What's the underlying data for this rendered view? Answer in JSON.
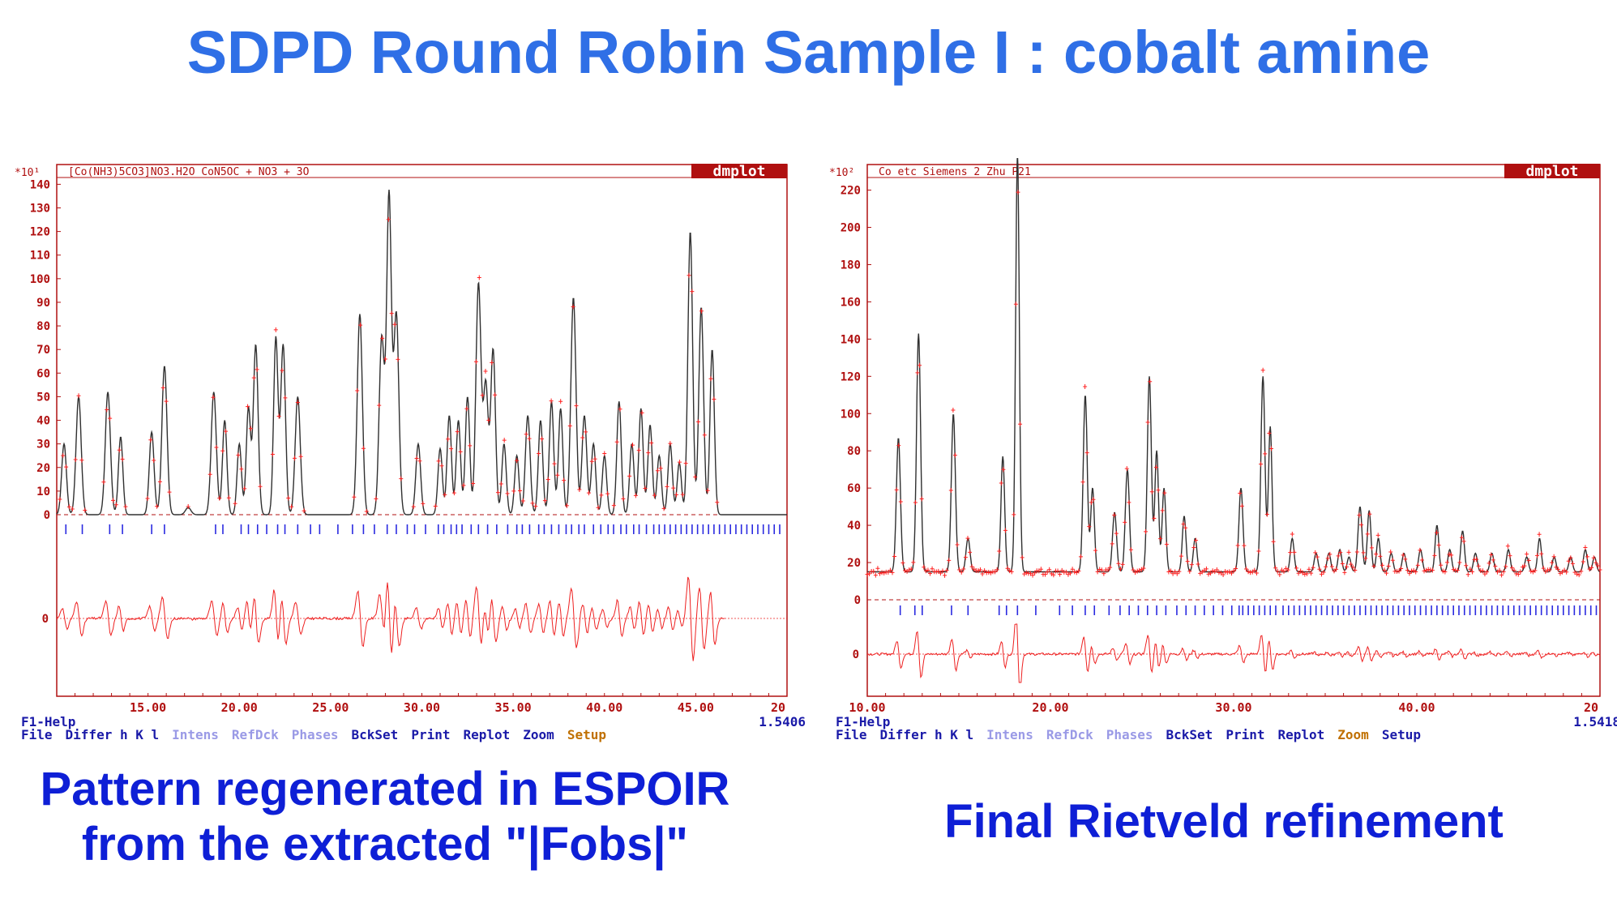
{
  "title": "SDPD Round Robin Sample I : cobalt amine",
  "captions": {
    "left_line1": "Pattern regenerated in ESPOIR",
    "left_line2": "from the extracted \"|Fobs|\"",
    "right": "Final Rietveld refinement"
  },
  "colors": {
    "title": "#2f6fe6",
    "caption": "#0e1fd6",
    "frame": "#b01010",
    "observed": "#ff2020",
    "calculated": "#303030",
    "ticks": "#2a2ae0",
    "difference": "#ee2020",
    "menu_active": "#1a1aa8",
    "menu_dim": "#9a9ae6",
    "menu_orange": "#c07000"
  },
  "chart_data": [
    {
      "type": "line",
      "badge": "dmplot",
      "scale_label": "*10¹",
      "header": "[Co(NH3)5CO3]NO3.H2O  CoN5OC + NO3 + 3O",
      "y_ticks": [
        0,
        10,
        20,
        30,
        40,
        50,
        60,
        70,
        80,
        90,
        100,
        110,
        120,
        130,
        140
      ],
      "ylim": [
        0,
        147
      ],
      "x_ticks": [
        "15.00",
        "20.00",
        "25.00",
        "30.00",
        "35.00",
        "40.00",
        "45.00",
        "20"
      ],
      "xlim": [
        10.0,
        50.0
      ],
      "diff_zero_label": "0",
      "background": 0,
      "end_2theta": 46.6,
      "peaks": [
        [
          10.4,
          30,
          0.13
        ],
        [
          11.2,
          50,
          0.14
        ],
        [
          12.8,
          52,
          0.14
        ],
        [
          13.5,
          33,
          0.12
        ],
        [
          15.2,
          35,
          0.13
        ],
        [
          15.9,
          63,
          0.14
        ],
        [
          17.2,
          3,
          0.15
        ],
        [
          18.6,
          52,
          0.14
        ],
        [
          19.2,
          40,
          0.12
        ],
        [
          20.0,
          30,
          0.12
        ],
        [
          20.5,
          45,
          0.12
        ],
        [
          20.9,
          72,
          0.13
        ],
        [
          22.0,
          75,
          0.12
        ],
        [
          22.4,
          72,
          0.13
        ],
        [
          23.2,
          50,
          0.14
        ],
        [
          26.6,
          85,
          0.14
        ],
        [
          27.8,
          75,
          0.14
        ],
        [
          28.2,
          135,
          0.13
        ],
        [
          28.6,
          85,
          0.14
        ],
        [
          29.8,
          30,
          0.13
        ],
        [
          31.0,
          28,
          0.12
        ],
        [
          31.5,
          42,
          0.12
        ],
        [
          32.0,
          40,
          0.12
        ],
        [
          32.5,
          50,
          0.12
        ],
        [
          33.1,
          98,
          0.14
        ],
        [
          33.5,
          55,
          0.13
        ],
        [
          33.9,
          70,
          0.13
        ],
        [
          34.5,
          30,
          0.12
        ],
        [
          35.2,
          25,
          0.12
        ],
        [
          35.8,
          42,
          0.13
        ],
        [
          36.5,
          40,
          0.12
        ],
        [
          37.1,
          48,
          0.12
        ],
        [
          37.6,
          45,
          0.12
        ],
        [
          38.3,
          92,
          0.14
        ],
        [
          38.9,
          42,
          0.13
        ],
        [
          39.4,
          30,
          0.12
        ],
        [
          40.0,
          25,
          0.12
        ],
        [
          40.8,
          48,
          0.12
        ],
        [
          41.5,
          30,
          0.12
        ],
        [
          42.0,
          45,
          0.12
        ],
        [
          42.5,
          38,
          0.12
        ],
        [
          43.0,
          25,
          0.12
        ],
        [
          43.6,
          30,
          0.12
        ],
        [
          44.1,
          22,
          0.12
        ],
        [
          44.7,
          120,
          0.13
        ],
        [
          45.3,
          88,
          0.13
        ],
        [
          45.9,
          70,
          0.12
        ]
      ],
      "refl_ticks": [
        10.5,
        11.4,
        12.9,
        13.6,
        15.2,
        15.9,
        18.7,
        19.1,
        20.1,
        20.5,
        21.0,
        21.5,
        22.1,
        22.5,
        23.2,
        23.9,
        24.4,
        25.4,
        26.2,
        26.8,
        27.4,
        28.1,
        28.6,
        29.2,
        29.6,
        30.2,
        30.9,
        31.2,
        31.6,
        31.9,
        32.2,
        32.7,
        33.1,
        33.6,
        34.1,
        34.7,
        35.2,
        35.5,
        35.9,
        36.4,
        36.7,
        37.1,
        37.5,
        37.9,
        38.2,
        38.6,
        38.9,
        39.4,
        39.8,
        40.2,
        40.5,
        40.9,
        41.2,
        41.6,
        41.9,
        42.3,
        42.7,
        43.0,
        43.3,
        43.6,
        43.9,
        44.2,
        44.5,
        44.8,
        45.1,
        45.4,
        45.7,
        46.0,
        46.3,
        46.6,
        46.9,
        47.2,
        47.5,
        47.8,
        48.1,
        48.4,
        48.7,
        49.0,
        49.3,
        49.6
      ],
      "diff_scale": 0.55,
      "help": "F1-Help",
      "wavelength": "1.5406",
      "menu": [
        {
          "label": "File",
          "style": "active"
        },
        {
          "label": "Differ h K l",
          "style": "active"
        },
        {
          "label": "Intens",
          "style": "dim"
        },
        {
          "label": "RefDck",
          "style": "dim"
        },
        {
          "label": "Phases",
          "style": "dim"
        },
        {
          "label": "BckSet",
          "style": "active"
        },
        {
          "label": "Print",
          "style": "active"
        },
        {
          "label": "Replot",
          "style": "active"
        },
        {
          "label": "Zoom",
          "style": "active"
        },
        {
          "label": "Setup",
          "style": "orange"
        }
      ]
    },
    {
      "type": "line",
      "badge": "dmplot",
      "scale_label": "*10²",
      "header": "Co etc  Siemens 2 Zhu   P21",
      "y_ticks": [
        0,
        20,
        40,
        60,
        80,
        100,
        120,
        140,
        160,
        180,
        200,
        220
      ],
      "ylim": [
        0,
        232
      ],
      "x_ticks": [
        "10.00",
        "20.00",
        "30.00",
        "40.00",
        "20"
      ],
      "xlim": [
        10.0,
        50.0
      ],
      "diff_zero_label": "0",
      "background": 15,
      "end_2theta": 50.0,
      "peaks": [
        [
          11.7,
          72,
          0.11
        ],
        [
          12.8,
          128,
          0.11
        ],
        [
          14.7,
          85,
          0.11
        ],
        [
          15.5,
          18,
          0.11
        ],
        [
          17.4,
          62,
          0.1
        ],
        [
          18.2,
          225,
          0.1
        ],
        [
          21.9,
          95,
          0.11
        ],
        [
          22.3,
          45,
          0.1
        ],
        [
          23.5,
          32,
          0.11
        ],
        [
          24.2,
          55,
          0.11
        ],
        [
          25.4,
          105,
          0.11
        ],
        [
          25.8,
          65,
          0.1
        ],
        [
          26.2,
          45,
          0.1
        ],
        [
          27.3,
          30,
          0.1
        ],
        [
          27.9,
          18,
          0.1
        ],
        [
          30.4,
          45,
          0.11
        ],
        [
          31.6,
          105,
          0.11
        ],
        [
          32.0,
          78,
          0.1
        ],
        [
          33.2,
          18,
          0.1
        ],
        [
          34.5,
          10,
          0.1
        ],
        [
          35.2,
          10,
          0.1
        ],
        [
          35.8,
          12,
          0.1
        ],
        [
          36.3,
          8,
          0.1
        ],
        [
          36.9,
          35,
          0.11
        ],
        [
          37.4,
          33,
          0.1
        ],
        [
          37.9,
          18,
          0.1
        ],
        [
          38.6,
          10,
          0.1
        ],
        [
          39.3,
          10,
          0.1
        ],
        [
          40.2,
          12,
          0.1
        ],
        [
          41.1,
          25,
          0.1
        ],
        [
          41.8,
          12,
          0.1
        ],
        [
          42.5,
          22,
          0.1
        ],
        [
          43.2,
          10,
          0.1
        ],
        [
          44.1,
          10,
          0.1
        ],
        [
          45.0,
          12,
          0.1
        ],
        [
          46.0,
          8,
          0.1
        ],
        [
          46.7,
          18,
          0.1
        ],
        [
          47.5,
          8,
          0.1
        ],
        [
          48.4,
          8,
          0.1
        ],
        [
          49.2,
          12,
          0.1
        ],
        [
          49.7,
          8,
          0.1
        ]
      ],
      "refl_ticks": [
        11.8,
        12.6,
        13.0,
        14.6,
        15.5,
        17.2,
        17.6,
        18.2,
        19.2,
        20.5,
        21.2,
        21.9,
        22.4,
        23.2,
        23.8,
        24.3,
        24.8,
        25.3,
        25.8,
        26.3,
        26.9,
        27.4,
        27.9,
        28.4,
        28.9,
        29.4,
        29.9,
        30.3,
        30.5,
        30.8,
        31.1,
        31.4,
        31.7,
        32.0,
        32.3,
        32.7,
        33.0,
        33.3,
        33.6,
        33.9,
        34.2,
        34.5,
        34.8,
        35.1,
        35.4,
        35.7,
        36.0,
        36.3,
        36.6,
        36.9,
        37.2,
        37.5,
        37.8,
        38.1,
        38.4,
        38.7,
        39.0,
        39.3,
        39.6,
        39.9,
        40.2,
        40.5,
        40.8,
        41.1,
        41.4,
        41.7,
        42.0,
        42.3,
        42.6,
        42.9,
        43.2,
        43.5,
        43.8,
        44.1,
        44.4,
        44.7,
        45.0,
        45.3,
        45.6,
        45.9,
        46.2,
        46.5,
        46.8,
        47.1,
        47.4,
        47.7,
        48.0,
        48.3,
        48.6,
        48.9,
        49.2,
        49.5,
        49.8
      ],
      "diff_scale": 0.25,
      "help": "F1-Help",
      "wavelength": "1.5418",
      "menu": [
        {
          "label": "File",
          "style": "active"
        },
        {
          "label": "Differ h K l",
          "style": "active"
        },
        {
          "label": "Intens",
          "style": "dim"
        },
        {
          "label": "RefDck",
          "style": "dim"
        },
        {
          "label": "Phases",
          "style": "dim"
        },
        {
          "label": "BckSet",
          "style": "active"
        },
        {
          "label": "Print",
          "style": "active"
        },
        {
          "label": "Replot",
          "style": "active"
        },
        {
          "label": "Zoom",
          "style": "orange"
        },
        {
          "label": "Setup",
          "style": "active"
        }
      ]
    }
  ]
}
